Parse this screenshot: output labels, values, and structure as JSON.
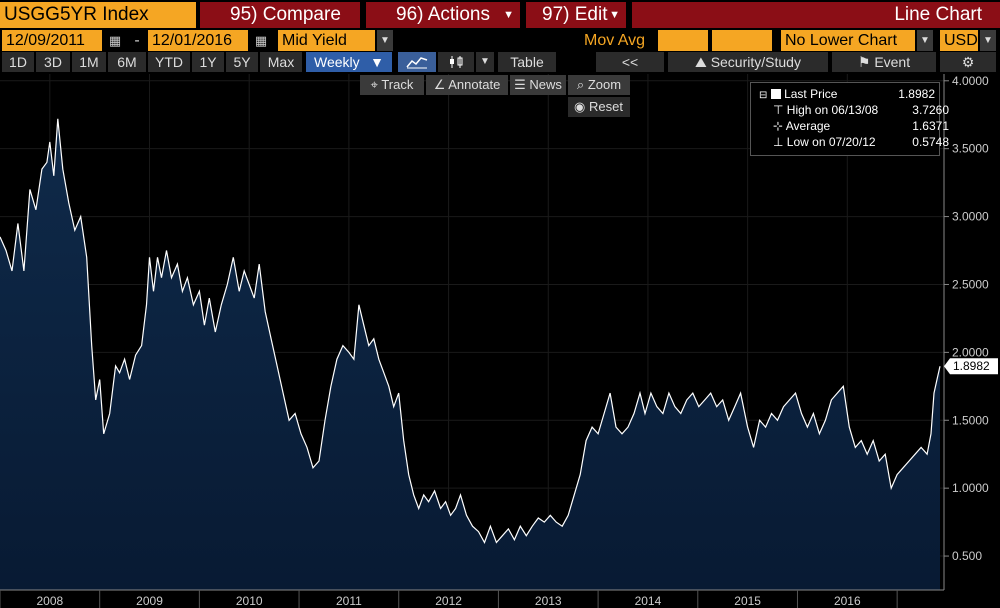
{
  "header": {
    "ticker": "USGG5YR Index",
    "compare": "95) Compare",
    "actions": "96) Actions",
    "edit": "97) Edit",
    "chart_type": "Line Chart"
  },
  "controls": {
    "start_date": "12/09/2011",
    "date_sep": "-",
    "end_date": "12/01/2016",
    "field": "Mid Yield",
    "mov_avg": "Mov Avg",
    "lower_chart": "No Lower Chart",
    "currency": "USD"
  },
  "periods": [
    "1D",
    "3D",
    "1M",
    "6M",
    "YTD",
    "1Y",
    "5Y",
    "Max"
  ],
  "toolbar": {
    "frequency": "Weekly",
    "table": "Table",
    "back": "<<",
    "security_study": "Security/Study",
    "event": "Event"
  },
  "tools": {
    "track": "Track",
    "annotate": "Annotate",
    "news": "News",
    "zoom": "Zoom",
    "reset": "Reset"
  },
  "legend": {
    "last_price_label": "Last Price",
    "last_price_value": "1.8982",
    "high_label": "High on 06/13/08",
    "high_value": "3.7260",
    "average_label": "Average",
    "average_value": "1.6371",
    "low_label": "Low on 07/20/12",
    "low_value": "0.5748"
  },
  "colors": {
    "orange": "#f5a623",
    "header_red": "#8b0e16",
    "line": "#ffffff",
    "fill_top": "#0f2a4a",
    "fill_bottom": "#081a33",
    "selected": "#2f5ea8"
  },
  "chart_data": {
    "type": "area",
    "y_ticks": [
      "0.500",
      "1.0000",
      "1.5000",
      "2.0000",
      "2.5000",
      "3.0000",
      "3.5000",
      "4.0000"
    ],
    "y_tick_values": [
      0.5,
      1.0,
      1.5,
      2.0,
      2.5,
      3.0,
      3.5,
      4.0
    ],
    "ylim": [
      0.25,
      4.05
    ],
    "x_tick_labels": [
      "2008",
      "2009",
      "2010",
      "2011",
      "2012",
      "2013",
      "2014",
      "2015",
      "2016"
    ],
    "x_tick_values": [
      2008.0,
      2009.0,
      2010.0,
      2011.0,
      2012.0,
      2013.0,
      2014.0,
      2015.0,
      2016.0
    ],
    "xlim": [
      2007.5,
      2016.97
    ],
    "last_value_label": "1.8982",
    "last_value": 1.8982,
    "series": [
      {
        "values": [
          [
            2007.5,
            2.85
          ],
          [
            2007.56,
            2.75
          ],
          [
            2007.62,
            2.6
          ],
          [
            2007.68,
            2.95
          ],
          [
            2007.74,
            2.6
          ],
          [
            2007.8,
            3.2
          ],
          [
            2007.86,
            3.05
          ],
          [
            2007.92,
            3.35
          ],
          [
            2007.97,
            3.4
          ],
          [
            2008.0,
            3.55
          ],
          [
            2008.04,
            3.3
          ],
          [
            2008.08,
            3.72
          ],
          [
            2008.13,
            3.35
          ],
          [
            2008.19,
            3.1
          ],
          [
            2008.25,
            2.9
          ],
          [
            2008.31,
            3.0
          ],
          [
            2008.37,
            2.7
          ],
          [
            2008.42,
            2.05
          ],
          [
            2008.46,
            1.65
          ],
          [
            2008.5,
            1.8
          ],
          [
            2008.54,
            1.4
          ],
          [
            2008.6,
            1.55
          ],
          [
            2008.66,
            1.9
          ],
          [
            2008.7,
            1.85
          ],
          [
            2008.75,
            1.95
          ],
          [
            2008.8,
            1.8
          ],
          [
            2008.86,
            1.98
          ],
          [
            2008.92,
            2.05
          ],
          [
            2008.97,
            2.35
          ],
          [
            2009.0,
            2.7
          ],
          [
            2009.04,
            2.45
          ],
          [
            2009.08,
            2.7
          ],
          [
            2009.12,
            2.55
          ],
          [
            2009.17,
            2.75
          ],
          [
            2009.22,
            2.55
          ],
          [
            2009.28,
            2.65
          ],
          [
            2009.33,
            2.45
          ],
          [
            2009.38,
            2.55
          ],
          [
            2009.44,
            2.35
          ],
          [
            2009.5,
            2.45
          ],
          [
            2009.55,
            2.2
          ],
          [
            2009.6,
            2.4
          ],
          [
            2009.66,
            2.15
          ],
          [
            2009.72,
            2.35
          ],
          [
            2009.78,
            2.5
          ],
          [
            2009.84,
            2.7
          ],
          [
            2009.9,
            2.45
          ],
          [
            2009.95,
            2.6
          ],
          [
            2010.0,
            2.5
          ],
          [
            2010.05,
            2.4
          ],
          [
            2010.1,
            2.65
          ],
          [
            2010.16,
            2.3
          ],
          [
            2010.22,
            2.1
          ],
          [
            2010.28,
            1.9
          ],
          [
            2010.34,
            1.7
          ],
          [
            2010.4,
            1.5
          ],
          [
            2010.46,
            1.55
          ],
          [
            2010.52,
            1.4
          ],
          [
            2010.58,
            1.3
          ],
          [
            2010.64,
            1.15
          ],
          [
            2010.7,
            1.2
          ],
          [
            2010.76,
            1.5
          ],
          [
            2010.82,
            1.75
          ],
          [
            2010.88,
            1.95
          ],
          [
            2010.94,
            2.05
          ],
          [
            2011.0,
            2.0
          ],
          [
            2011.05,
            1.95
          ],
          [
            2011.1,
            2.35
          ],
          [
            2011.15,
            2.2
          ],
          [
            2011.2,
            2.05
          ],
          [
            2011.25,
            2.1
          ],
          [
            2011.3,
            1.95
          ],
          [
            2011.35,
            1.85
          ],
          [
            2011.4,
            1.75
          ],
          [
            2011.45,
            1.6
          ],
          [
            2011.5,
            1.7
          ],
          [
            2011.55,
            1.35
          ],
          [
            2011.6,
            1.1
          ],
          [
            2011.65,
            0.95
          ],
          [
            2011.7,
            0.85
          ],
          [
            2011.75,
            0.95
          ],
          [
            2011.8,
            0.9
          ],
          [
            2011.86,
            0.98
          ],
          [
            2011.92,
            0.85
          ],
          [
            2011.97,
            0.9
          ],
          [
            2012.02,
            0.8
          ],
          [
            2012.07,
            0.85
          ],
          [
            2012.12,
            0.95
          ],
          [
            2012.18,
            0.8
          ],
          [
            2012.24,
            0.72
          ],
          [
            2012.3,
            0.68
          ],
          [
            2012.36,
            0.6
          ],
          [
            2012.42,
            0.72
          ],
          [
            2012.48,
            0.6
          ],
          [
            2012.54,
            0.65
          ],
          [
            2012.6,
            0.7
          ],
          [
            2012.66,
            0.62
          ],
          [
            2012.72,
            0.72
          ],
          [
            2012.78,
            0.65
          ],
          [
            2012.84,
            0.72
          ],
          [
            2012.9,
            0.78
          ],
          [
            2012.96,
            0.75
          ],
          [
            2013.02,
            0.8
          ],
          [
            2013.08,
            0.75
          ],
          [
            2013.14,
            0.72
          ],
          [
            2013.2,
            0.8
          ],
          [
            2013.26,
            0.95
          ],
          [
            2013.32,
            1.1
          ],
          [
            2013.38,
            1.35
          ],
          [
            2013.44,
            1.45
          ],
          [
            2013.5,
            1.4
          ],
          [
            2013.56,
            1.55
          ],
          [
            2013.62,
            1.7
          ],
          [
            2013.68,
            1.45
          ],
          [
            2013.74,
            1.4
          ],
          [
            2013.8,
            1.45
          ],
          [
            2013.86,
            1.55
          ],
          [
            2013.92,
            1.7
          ],
          [
            2013.97,
            1.55
          ],
          [
            2014.03,
            1.7
          ],
          [
            2014.09,
            1.6
          ],
          [
            2014.15,
            1.55
          ],
          [
            2014.21,
            1.7
          ],
          [
            2014.27,
            1.6
          ],
          [
            2014.33,
            1.55
          ],
          [
            2014.39,
            1.65
          ],
          [
            2014.45,
            1.7
          ],
          [
            2014.51,
            1.6
          ],
          [
            2014.57,
            1.65
          ],
          [
            2014.63,
            1.7
          ],
          [
            2014.69,
            1.6
          ],
          [
            2014.75,
            1.65
          ],
          [
            2014.81,
            1.5
          ],
          [
            2014.87,
            1.6
          ],
          [
            2014.93,
            1.7
          ],
          [
            2015.0,
            1.45
          ],
          [
            2015.06,
            1.3
          ],
          [
            2015.12,
            1.5
          ],
          [
            2015.18,
            1.45
          ],
          [
            2015.24,
            1.55
          ],
          [
            2015.3,
            1.5
          ],
          [
            2015.36,
            1.6
          ],
          [
            2015.42,
            1.65
          ],
          [
            2015.48,
            1.7
          ],
          [
            2015.54,
            1.55
          ],
          [
            2015.6,
            1.45
          ],
          [
            2015.66,
            1.55
          ],
          [
            2015.72,
            1.4
          ],
          [
            2015.78,
            1.5
          ],
          [
            2015.84,
            1.65
          ],
          [
            2015.9,
            1.7
          ],
          [
            2015.96,
            1.75
          ],
          [
            2016.02,
            1.45
          ],
          [
            2016.08,
            1.3
          ],
          [
            2016.14,
            1.35
          ],
          [
            2016.2,
            1.25
          ],
          [
            2016.26,
            1.35
          ],
          [
            2016.32,
            1.2
          ],
          [
            2016.38,
            1.25
          ],
          [
            2016.44,
            1.0
          ],
          [
            2016.5,
            1.1
          ],
          [
            2016.56,
            1.15
          ],
          [
            2016.62,
            1.2
          ],
          [
            2016.68,
            1.25
          ],
          [
            2016.74,
            1.3
          ],
          [
            2016.8,
            1.25
          ],
          [
            2016.84,
            1.4
          ],
          [
            2016.87,
            1.7
          ],
          [
            2016.9,
            1.8
          ],
          [
            2016.93,
            1.8982
          ]
        ]
      }
    ]
  }
}
